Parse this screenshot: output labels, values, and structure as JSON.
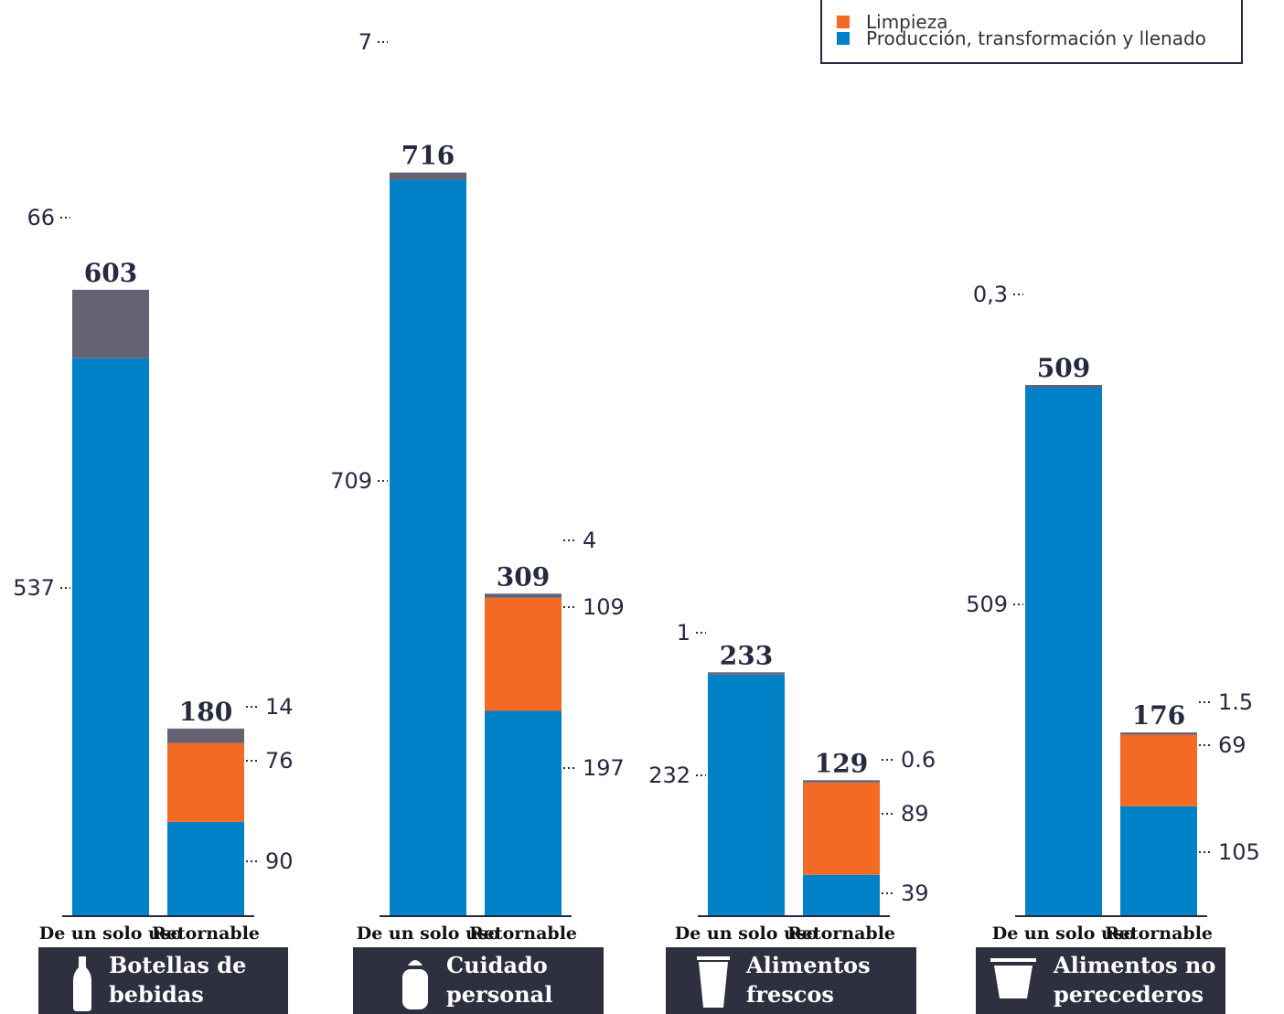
{
  "legend": {
    "items": [
      {
        "label": "Limpieza",
        "color": "#f26a24"
      },
      {
        "label": "Producción, transformación y llenado",
        "color": "#0081c8"
      }
    ]
  },
  "colors": {
    "production": "#0081c8",
    "cleaning": "#f26a24",
    "other": "#646273",
    "text": "#262a40"
  },
  "categories": [
    {
      "name_line1": "Botellas de",
      "name_line2": "bebidas",
      "icon": "bottle-icon"
    },
    {
      "name_line1": "Cuidado",
      "name_line2": "personal",
      "icon": "personal-care-icon"
    },
    {
      "name_line1": "Alimentos",
      "name_line2": "frescos",
      "icon": "cup-icon"
    },
    {
      "name_line1": "Alimentos no",
      "name_line2": "perecederos",
      "icon": "tub-icon"
    }
  ],
  "chart_data": {
    "type": "bar",
    "stacked": true,
    "groups": [
      "Botellas de bebidas",
      "Cuidado personal",
      "Alimentos frescos",
      "Alimentos no perecederos"
    ],
    "categories": [
      "De un solo uso",
      "Retornable"
    ],
    "segment_order": [
      "Producción, transformación y llenado",
      "Limpieza",
      ""
    ],
    "bars": [
      {
        "group": "Botellas de bebidas",
        "category": "De un solo uso",
        "total": "603",
        "segments": [
          {
            "series": "Producción, transformación y llenado",
            "value": 537,
            "label": "537"
          },
          {
            "series": "",
            "value": 66,
            "label": "66"
          }
        ]
      },
      {
        "group": "Botellas de bebidas",
        "category": "Retornable",
        "total": "180",
        "segments": [
          {
            "series": "Producción, transformación y llenado",
            "value": 90,
            "label": "90"
          },
          {
            "series": "Limpieza",
            "value": 76,
            "label": "76"
          },
          {
            "series": "",
            "value": 14,
            "label": "14"
          }
        ]
      },
      {
        "group": "Cuidado personal",
        "category": "De un solo uso",
        "total": "716",
        "segments": [
          {
            "series": "Producción, transformación y llenado",
            "value": 709,
            "label": "709"
          },
          {
            "series": "",
            "value": 7,
            "label": "7"
          }
        ]
      },
      {
        "group": "Cuidado personal",
        "category": "Retornable",
        "total": "309",
        "segments": [
          {
            "series": "Producción, transformación y llenado",
            "value": 197,
            "label": "197"
          },
          {
            "series": "Limpieza",
            "value": 109,
            "label": "109"
          },
          {
            "series": "",
            "value": 4,
            "label": "4"
          }
        ]
      },
      {
        "group": "Alimentos frescos",
        "category": "De un solo uso",
        "total": "233",
        "segments": [
          {
            "series": "Producción, transformación y llenado",
            "value": 232,
            "label": "232"
          },
          {
            "series": "",
            "value": 1,
            "label": "1"
          }
        ]
      },
      {
        "group": "Alimentos frescos",
        "category": "Retornable",
        "total": "129",
        "segments": [
          {
            "series": "Producción, transformación y llenado",
            "value": 39,
            "label": "39"
          },
          {
            "series": "Limpieza",
            "value": 89,
            "label": "89"
          },
          {
            "series": "",
            "value": 0.6,
            "label": "0.6"
          }
        ]
      },
      {
        "group": "Alimentos no perecederos",
        "category": "De un solo uso",
        "total": "509",
        "segments": [
          {
            "series": "Producción, transformación y llenado",
            "value": 509,
            "label": "509"
          },
          {
            "series": "",
            "value": 0.3,
            "label": "0,3"
          }
        ]
      },
      {
        "group": "Alimentos no perecederos",
        "category": "Retornable",
        "total": "176",
        "segments": [
          {
            "series": "Producción, transformación y llenado",
            "value": 105,
            "label": "105"
          },
          {
            "series": "Limpieza",
            "value": 69,
            "label": "69"
          },
          {
            "series": "",
            "value": 1.5,
            "label": "1.5"
          }
        ]
      }
    ]
  }
}
